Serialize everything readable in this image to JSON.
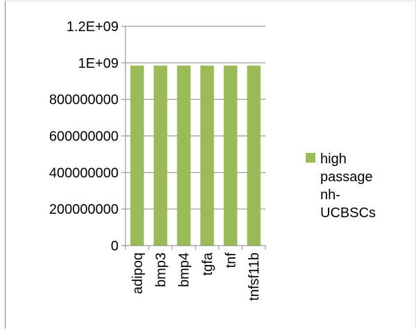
{
  "chart_data": {
    "type": "bar",
    "title": "",
    "xlabel": "",
    "ylabel": "",
    "categories": [
      "adipoq",
      "bmp3",
      "bmp4",
      "tgfa",
      "tnf",
      "tnfsf11b"
    ],
    "series": [
      {
        "name": "high passage nh-UCBSCs",
        "color": "#9bbb59",
        "values": [
          985000000,
          985000000,
          985000000,
          985000000,
          985000000,
          985000000
        ]
      }
    ],
    "ylim": [
      0,
      1200000000
    ],
    "y_ticks": [
      0,
      200000000,
      400000000,
      600000000,
      800000000,
      1000000000,
      1200000000
    ],
    "y_tick_labels": [
      "0",
      "200000000",
      "400000000",
      "600000000",
      "800000000",
      "1E+09",
      "1.2E+09"
    ],
    "grid": true,
    "legend": {
      "position": "right",
      "lines": [
        "high",
        "passage",
        "nh-",
        "UCBSCs"
      ]
    }
  }
}
